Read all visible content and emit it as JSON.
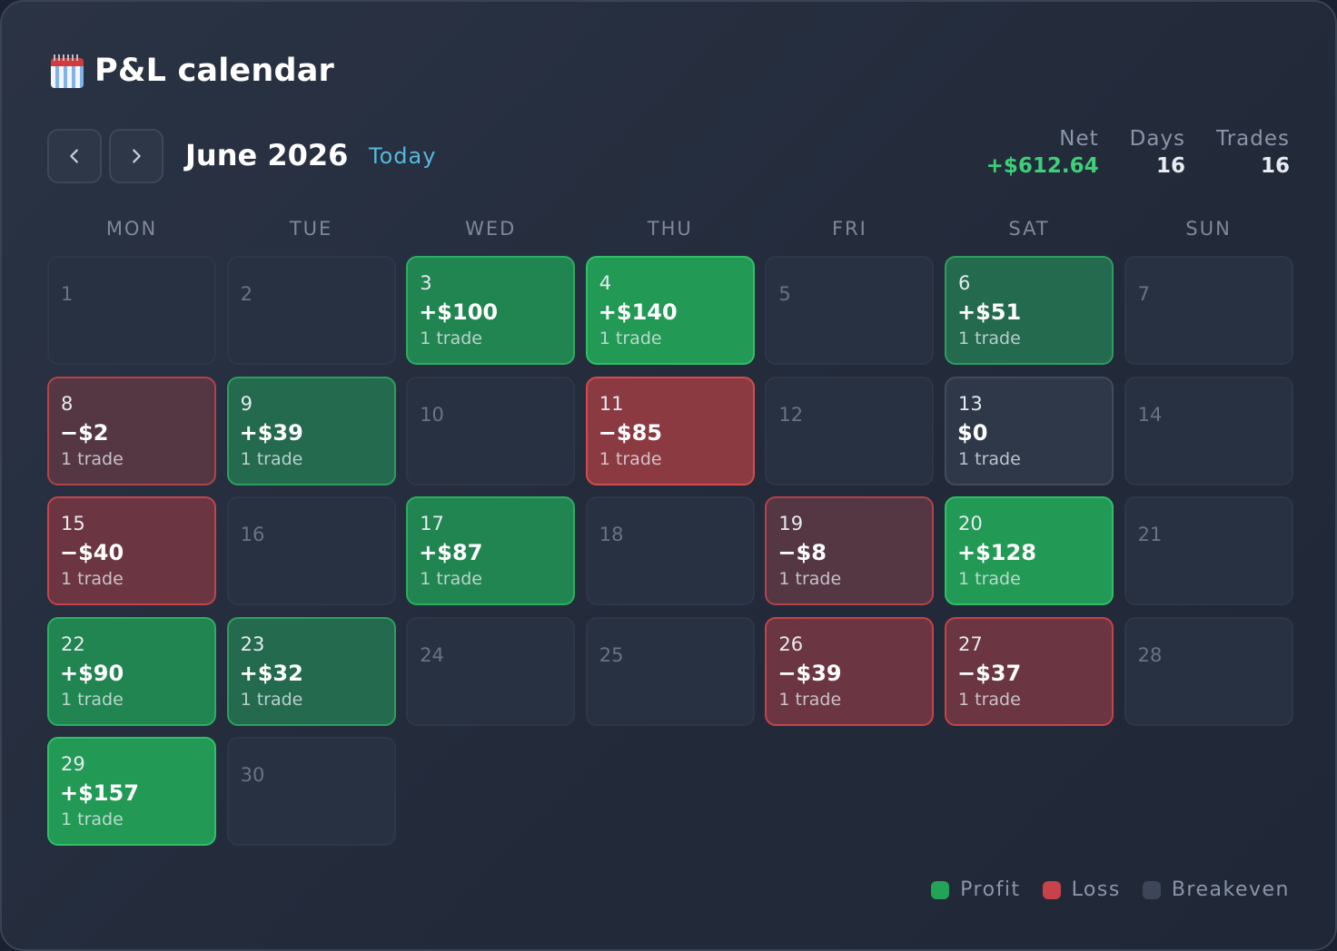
{
  "header": {
    "icon": "calendar-icon",
    "title": "P&L calendar"
  },
  "nav": {
    "prev_icon": "chevron-left-icon",
    "next_icon": "chevron-right-icon",
    "month_label": "June 2026",
    "today_label": "Today"
  },
  "stats": [
    {
      "label": "Net",
      "value": "+$612.64",
      "tone": "pos"
    },
    {
      "label": "Days",
      "value": "16",
      "tone": "neutral"
    },
    {
      "label": "Trades",
      "value": "16",
      "tone": "neutral"
    }
  ],
  "weekdays": [
    "MON",
    "TUE",
    "WED",
    "THU",
    "FRI",
    "SAT",
    "SUN"
  ],
  "days": [
    {
      "day": "1"
    },
    {
      "day": "2"
    },
    {
      "day": "3",
      "pnl": "+$100",
      "trades": "1 trade",
      "status": "p2"
    },
    {
      "day": "4",
      "pnl": "+$140",
      "trades": "1 trade",
      "status": "p3"
    },
    {
      "day": "5"
    },
    {
      "day": "6",
      "pnl": "+$51",
      "trades": "1 trade",
      "status": "p1"
    },
    {
      "day": "7"
    },
    {
      "day": "8",
      "pnl": "−$2",
      "trades": "1 trade",
      "status": "l1"
    },
    {
      "day": "9",
      "pnl": "+$39",
      "trades": "1 trade",
      "status": "p1"
    },
    {
      "day": "10"
    },
    {
      "day": "11",
      "pnl": "−$85",
      "trades": "1 trade",
      "status": "l3"
    },
    {
      "day": "12"
    },
    {
      "day": "13",
      "pnl": "$0",
      "trades": "1 trade",
      "status": "be"
    },
    {
      "day": "14"
    },
    {
      "day": "15",
      "pnl": "−$40",
      "trades": "1 trade",
      "status": "l2"
    },
    {
      "day": "16"
    },
    {
      "day": "17",
      "pnl": "+$87",
      "trades": "1 trade",
      "status": "p2"
    },
    {
      "day": "18"
    },
    {
      "day": "19",
      "pnl": "−$8",
      "trades": "1 trade",
      "status": "l1"
    },
    {
      "day": "20",
      "pnl": "+$128",
      "trades": "1 trade",
      "status": "p3"
    },
    {
      "day": "21"
    },
    {
      "day": "22",
      "pnl": "+$90",
      "trades": "1 trade",
      "status": "p2"
    },
    {
      "day": "23",
      "pnl": "+$32",
      "trades": "1 trade",
      "status": "p1"
    },
    {
      "day": "24"
    },
    {
      "day": "25"
    },
    {
      "day": "26",
      "pnl": "−$39",
      "trades": "1 trade",
      "status": "l2"
    },
    {
      "day": "27",
      "pnl": "−$37",
      "trades": "1 trade",
      "status": "l2"
    },
    {
      "day": "28"
    },
    {
      "day": "29",
      "pnl": "+$157",
      "trades": "1 trade",
      "status": "p3"
    },
    {
      "day": "30"
    }
  ],
  "legend": [
    {
      "label": "Profit",
      "color": "#22a355"
    },
    {
      "label": "Loss",
      "color": "#c8424a"
    },
    {
      "label": "Breakeven",
      "color": "#3d4658"
    }
  ]
}
